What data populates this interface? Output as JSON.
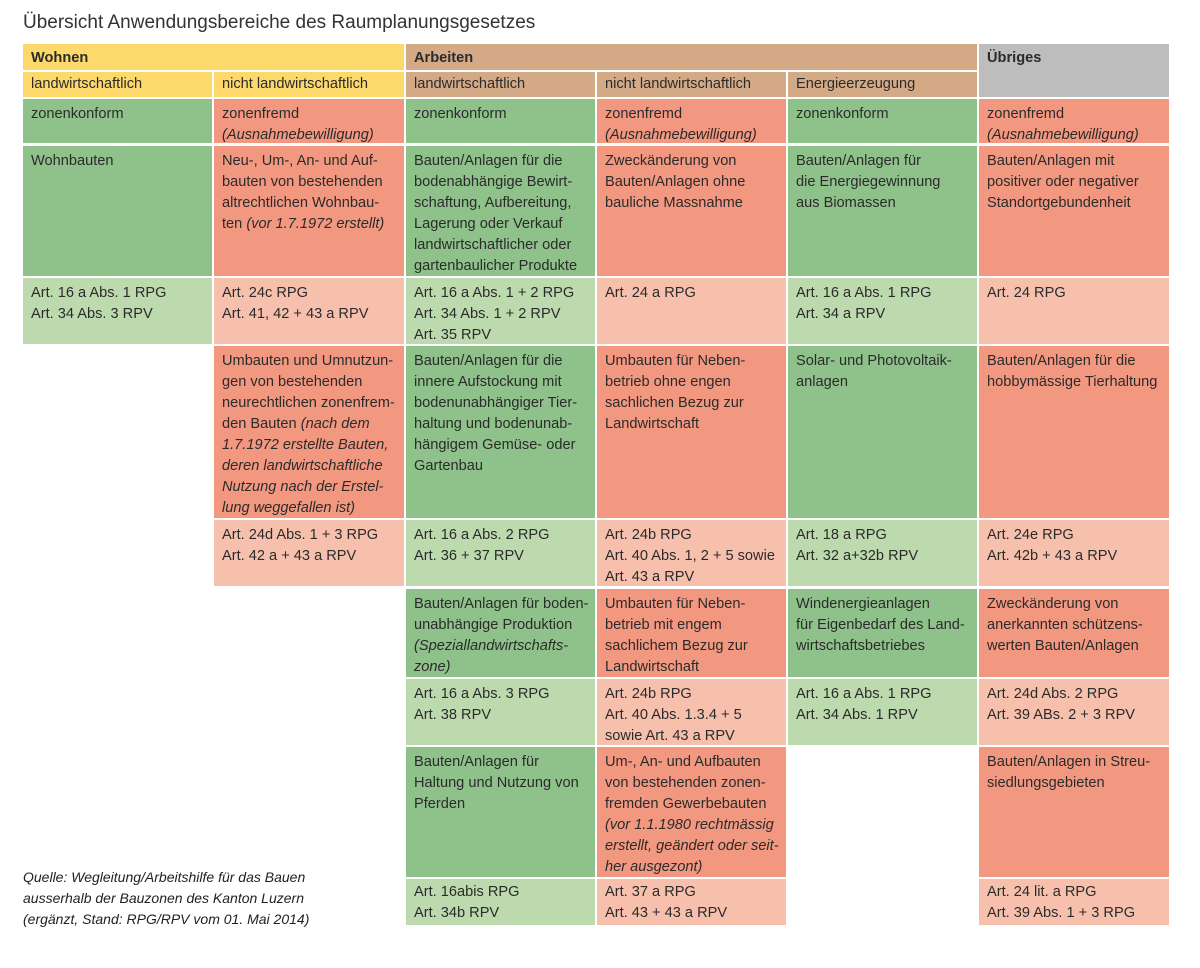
{
  "title": "Übersicht Anwendungsbereiche des Raumplanungsgesetzes",
  "header": {
    "wohnen": "Wohnen",
    "arbeiten": "Arbeiten",
    "uebriges": "Übriges",
    "sub": {
      "w_landw": "landwirtschaftlich",
      "w_nicht": "nicht landwirtschaftlich",
      "a_landw": "landwirtschaftlich",
      "a_nicht": "nicht landwirtschaftlich",
      "a_energie": "Energieerzeugung"
    }
  },
  "zonen": {
    "c1": "zonenkonform",
    "c2": [
      "zonenfremd",
      "(Ausnahmebewilligung)"
    ],
    "c3": "zonenkonform",
    "c4": [
      "zonenfremd",
      "(Ausnahmebewilligung)"
    ],
    "c5": "zonenkonform",
    "c6": [
      "zonenfremd",
      "(Ausnahmebewilligung)"
    ]
  },
  "block1": {
    "desc": {
      "c1": [
        "Wohnbauten"
      ],
      "c2": [
        "Neu-, Um-, An- und Auf-",
        "bauten von bestehenden",
        "altrechtlichen Wohnbau-"
      ],
      "c2_last": "ten",
      "c2_last_it": "(vor 1.7.1972 erstellt)",
      "c3": [
        "Bauten/Anlagen für die",
        "bodenabhängige Bewirt-",
        "schaftung, Aufbereitung,",
        "Lagerung oder Verkauf",
        "landwirtschaftlicher oder",
        "gartenbaulicher Produkte"
      ],
      "c4": [
        "Zweckänderung von",
        "Bauten/Anlagen ohne",
        "bauliche Massnahme"
      ],
      "c5": [
        "Bauten/Anlagen für",
        "die Energiegewinnung",
        "aus Biomassen"
      ],
      "c6": [
        "Bauten/Anlagen mit",
        "positiver oder negativer",
        "Standortgebundenheit"
      ]
    },
    "art": {
      "c1": [
        "Art. 16 a Abs. 1 RPG",
        "Art. 34 Abs. 3 RPV"
      ],
      "c2": [
        "Art. 24c RPG",
        "Art. 41, 42 + 43 a RPV"
      ],
      "c3": [
        "Art. 16 a Abs. 1 + 2 RPG",
        "Art. 34 Abs. 1 + 2 RPV",
        "Art. 35 RPV"
      ],
      "c4": [
        "Art. 24 a RPG"
      ],
      "c5": [
        "Art. 16 a Abs. 1 RPG",
        "Art. 34 a RPV"
      ],
      "c6": [
        "Art. 24 RPG"
      ]
    }
  },
  "block2": {
    "desc": {
      "c2": [
        "Umbauten und Umnutzun-",
        "gen von bestehenden",
        "neurechtlichen zonenfrem-"
      ],
      "c2_mixed": "den Bauten",
      "c2_mixed_it": "(nach dem",
      "c2_it": [
        "1.7.1972 erstellte Bauten,",
        "deren landwirtschaftliche",
        "Nutzung nach der Erstel-",
        "lung weggefallen ist)"
      ],
      "c3": [
        "Bauten/Anlagen für die",
        "innere Aufstockung mit",
        "bodenunabhängiger Tier-",
        "haltung und bodenunab-",
        "hängigem Gemüse- oder",
        "Gartenbau"
      ],
      "c4": [
        "Umbauten für Neben-",
        "betrieb ohne engen",
        "sachlichen Bezug zur",
        "Landwirtschaft"
      ],
      "c5": [
        "Solar- und Photovoltaik-",
        "anlagen"
      ],
      "c6": [
        "Bauten/Anlagen für die",
        "hobbymässige Tierhaltung"
      ]
    },
    "art": {
      "c2": [
        "Art. 24d Abs. 1 + 3 RPG",
        "Art. 42 a + 43 a RPV"
      ],
      "c3": [
        "Art. 16 a Abs. 2 RPG",
        "Art. 36 + 37 RPV"
      ],
      "c4": [
        "Art. 24b RPG",
        "Art. 40 Abs. 1, 2 + 5 sowie",
        "Art. 43 a RPV"
      ],
      "c5": [
        "Art. 18 a RPG",
        "Art. 32 a+32b RPV"
      ],
      "c6": [
        "Art. 24e RPG",
        "Art. 42b + 43 a RPV"
      ]
    }
  },
  "block3": {
    "desc": {
      "c3": [
        "Bauten/Anlagen für boden-",
        "unabhängige Produktion"
      ],
      "c3_it": [
        "(Speziallandwirtschafts-",
        "zone)"
      ],
      "c4": [
        "Umbauten für Neben-",
        "betrieb mit engem",
        "sachlichem Bezug zur",
        "Landwirtschaft"
      ],
      "c5": [
        "Windenergieanlagen",
        "für Eigenbedarf des Land-",
        "wirtschaftsbetriebes"
      ],
      "c6": [
        "Zweckänderung von",
        "anerkannten schützens-",
        "werten Bauten/Anlagen"
      ]
    },
    "art": {
      "c3": [
        "Art. 16 a Abs. 3 RPG",
        "Art. 38 RPV"
      ],
      "c4": [
        "Art. 24b RPG",
        "Art. 40 Abs. 1.3.4 + 5",
        "sowie Art. 43 a RPV"
      ],
      "c5": [
        "Art. 16 a Abs. 1 RPG",
        "Art. 34 Abs. 1 RPV"
      ],
      "c6": [
        "Art. 24d Abs. 2 RPG",
        "Art. 39 ABs. 2 + 3 RPV"
      ]
    }
  },
  "block4": {
    "desc": {
      "c3": [
        "Bauten/Anlagen für",
        "Haltung und Nutzung von",
        "Pferden"
      ],
      "c4": [
        "Um-, An- und Aufbauten",
        "von bestehenden zonen-",
        "fremden Gewerbebauten"
      ],
      "c4_it": [
        "(vor 1.1.1980 rechtmässig",
        "erstellt, geändert oder seit-",
        "her ausgezont)"
      ],
      "c6": [
        "Bauten/Anlagen in Streu-",
        "siedlungsgebieten"
      ]
    },
    "art": {
      "c3": [
        "Art. 16abis RPG",
        "Art. 34b RPV"
      ],
      "c4": [
        "Art. 37 a RPG",
        "Art. 43 + 43 a RPV"
      ],
      "c6": [
        "Art. 24 lit. a RPG",
        "Art. 39 Abs. 1 + 3 RPG"
      ]
    }
  },
  "source": [
    "Quelle: Wegleitung/Arbeitshilfe für das Bauen",
    "ausserhalb der Bauzonen des Kanton Luzern",
    "(ergänzt, Stand: RPG/RPV vom 01. Mai 2014)"
  ],
  "colors": {
    "wohnen": "#fdd86b",
    "arbeiten": "#d4aa86",
    "uebriges": "#bdbdbd",
    "konform": "#8fc18a",
    "konform_art": "#bcdaae",
    "fremd": "#f39880",
    "fremd_art": "#f7c0ad"
  }
}
